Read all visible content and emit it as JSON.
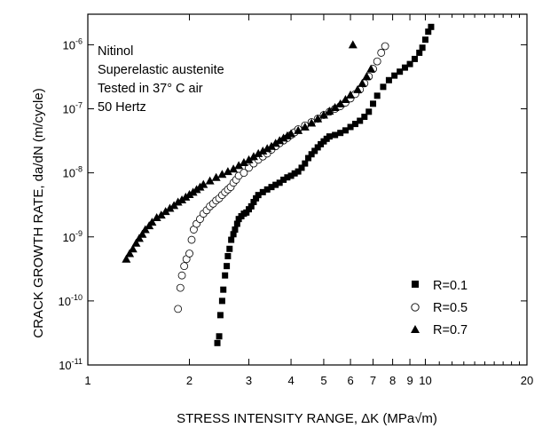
{
  "chart_data": {
    "type": "scatter",
    "xscale": "log",
    "yscale": "log",
    "xlim": [
      1,
      20
    ],
    "ylim": [
      1e-11,
      3e-06
    ],
    "xlabel": "STRESS INTENSITY RANGE, ΔK (MPa√m)",
    "ylabel": "CRACK GROWTH RATE, da/dN (m/cycle)",
    "xticks": [
      1,
      2,
      3,
      4,
      5,
      6,
      7,
      8,
      9,
      10,
      20
    ],
    "xtick_labels": [
      "1",
      "2",
      "3",
      "4",
      "5",
      "6",
      "7",
      "8",
      "9",
      "10",
      "20"
    ],
    "yticks": [
      {
        "value": 1e-11,
        "base": "10",
        "exp": "-11"
      },
      {
        "value": 1e-10,
        "base": "10",
        "exp": "-10"
      },
      {
        "value": 1e-09,
        "base": "10",
        "exp": "-9"
      },
      {
        "value": 1e-08,
        "base": "10",
        "exp": "-8"
      },
      {
        "value": 1e-07,
        "base": "10",
        "exp": "-7"
      },
      {
        "value": 1e-06,
        "base": "10",
        "exp": "-6"
      }
    ],
    "annotation_lines": [
      "Nitinol",
      "Superelastic austenite",
      "Tested in 37° C air",
      "50 Hertz"
    ],
    "legend_position": "bottom-right",
    "series": [
      {
        "name": "R=0.1",
        "marker": "square-filled",
        "x": [
          2.42,
          2.45,
          2.47,
          2.5,
          2.52,
          2.55,
          2.58,
          2.6,
          2.63,
          2.66,
          2.7,
          2.73,
          2.77,
          2.8,
          2.85,
          2.9,
          2.95,
          3.0,
          3.05,
          3.1,
          3.15,
          3.2,
          3.3,
          3.4,
          3.5,
          3.6,
          3.7,
          3.8,
          3.9,
          4.0,
          4.1,
          4.2,
          4.3,
          4.4,
          4.5,
          4.6,
          4.7,
          4.8,
          4.9,
          5.0,
          5.1,
          5.2,
          5.4,
          5.6,
          5.8,
          6.0,
          6.2,
          6.4,
          6.6,
          6.8,
          7.0,
          7.2,
          7.5,
          7.8,
          8.1,
          8.4,
          8.7,
          9.0,
          9.3,
          9.6,
          9.8,
          10.0,
          10.2,
          10.4
        ],
        "y": [
          2.2e-11,
          2.8e-11,
          6e-11,
          1e-10,
          1.5e-10,
          2.5e-10,
          3.5e-10,
          5e-10,
          6.5e-10,
          9e-10,
          1.1e-09,
          1.3e-09,
          1.6e-09,
          1.9e-09,
          2.1e-09,
          2.3e-09,
          2.4e-09,
          2.7e-09,
          3e-09,
          3.5e-09,
          4e-09,
          4.5e-09,
          5e-09,
          5.5e-09,
          6e-09,
          6.5e-09,
          7e-09,
          7.8e-09,
          8.5e-09,
          9e-09,
          9.8e-09,
          1.05e-08,
          1.2e-08,
          1.4e-08,
          1.7e-08,
          1.95e-08,
          2.2e-08,
          2.5e-08,
          2.8e-08,
          3.1e-08,
          3.4e-08,
          3.7e-08,
          3.9e-08,
          4.2e-08,
          4.6e-08,
          5.2e-08,
          5.8e-08,
          6.5e-08,
          7.5e-08,
          9e-08,
          1.2e-07,
          1.6e-07,
          2.2e-07,
          2.8e-07,
          3.3e-07,
          3.8e-07,
          4.4e-07,
          5e-07,
          6e-07,
          7.5e-07,
          9e-07,
          1.2e-06,
          1.6e-06,
          1.9e-06
        ]
      },
      {
        "name": "R=0.5",
        "marker": "circle-open",
        "x": [
          1.85,
          1.88,
          1.9,
          1.93,
          1.96,
          2.0,
          2.03,
          2.06,
          2.1,
          2.15,
          2.2,
          2.25,
          2.3,
          2.35,
          2.4,
          2.45,
          2.5,
          2.55,
          2.6,
          2.65,
          2.7,
          2.75,
          2.8,
          2.9,
          3.0,
          3.1,
          3.2,
          3.3,
          3.4,
          3.5,
          3.6,
          3.7,
          3.8,
          3.9,
          4.0,
          4.1,
          4.2,
          4.4,
          4.6,
          4.8,
          5.0,
          5.2,
          5.4,
          5.6,
          5.8,
          6.0,
          6.2,
          6.4,
          6.6,
          6.8,
          7.0,
          7.2,
          7.4,
          7.6
        ],
        "y": [
          7.5e-11,
          1.6e-10,
          2.5e-10,
          3.5e-10,
          4.5e-10,
          5.5e-10,
          9e-10,
          1.3e-09,
          1.6e-09,
          1.9e-09,
          2.3e-09,
          2.6e-09,
          3e-09,
          3.3e-09,
          3.7e-09,
          4e-09,
          4.5e-09,
          5e-09,
          5.5e-09,
          6e-09,
          7e-09,
          7.8e-09,
          9e-09,
          1e-08,
          1.2e-08,
          1.4e-08,
          1.6e-08,
          1.8e-08,
          2e-08,
          2.3e-08,
          2.6e-08,
          2.9e-08,
          3.2e-08,
          3.5e-08,
          3.9e-08,
          4.3e-08,
          4.8e-08,
          5.5e-08,
          6.2e-08,
          7e-08,
          8e-08,
          9e-08,
          1e-07,
          1.1e-07,
          1.25e-07,
          1.45e-07,
          1.7e-07,
          2e-07,
          2.5e-07,
          3.2e-07,
          4.2e-07,
          5.5e-07,
          7.5e-07,
          9.5e-07
        ]
      },
      {
        "name": "R=0.7",
        "marker": "triangle-filled",
        "x": [
          1.3,
          1.33,
          1.36,
          1.39,
          1.42,
          1.45,
          1.48,
          1.52,
          1.55,
          1.6,
          1.65,
          1.7,
          1.75,
          1.8,
          1.85,
          1.9,
          1.95,
          2.0,
          2.05,
          2.1,
          2.15,
          2.2,
          2.3,
          2.4,
          2.5,
          2.6,
          2.7,
          2.8,
          2.9,
          3.0,
          3.1,
          3.2,
          3.3,
          3.4,
          3.5,
          3.6,
          3.7,
          3.8,
          3.9,
          4.0,
          4.2,
          4.4,
          4.6,
          4.8,
          5.0,
          5.2,
          5.4,
          5.6,
          5.8,
          6.0,
          6.1,
          6.3,
          6.5,
          6.7,
          6.9
        ],
        "y": [
          4.5e-10,
          5.5e-10,
          6.5e-10,
          8e-10,
          9.5e-10,
          1.1e-09,
          1.3e-09,
          1.5e-09,
          1.7e-09,
          2e-09,
          2.2e-09,
          2.5e-09,
          2.8e-09,
          3.1e-09,
          3.5e-09,
          3.8e-09,
          4.2e-09,
          4.6e-09,
          5e-09,
          5.5e-09,
          6e-09,
          6.6e-09,
          7.5e-09,
          8.5e-09,
          9.5e-09,
          1.05e-08,
          1.15e-08,
          1.3e-08,
          1.45e-08,
          1.6e-08,
          1.8e-08,
          2e-08,
          2.2e-08,
          2.4e-08,
          2.6e-08,
          2.9e-08,
          3.2e-08,
          3.5e-08,
          3.8e-08,
          4.1e-08,
          4.6e-08,
          5.2e-08,
          6e-08,
          7e-08,
          8e-08,
          9.2e-08,
          1.05e-07,
          1.2e-07,
          1.4e-07,
          1.65e-07,
          1e-06,
          2e-07,
          2.5e-07,
          3.2e-07,
          4.2e-07
        ]
      }
    ]
  }
}
